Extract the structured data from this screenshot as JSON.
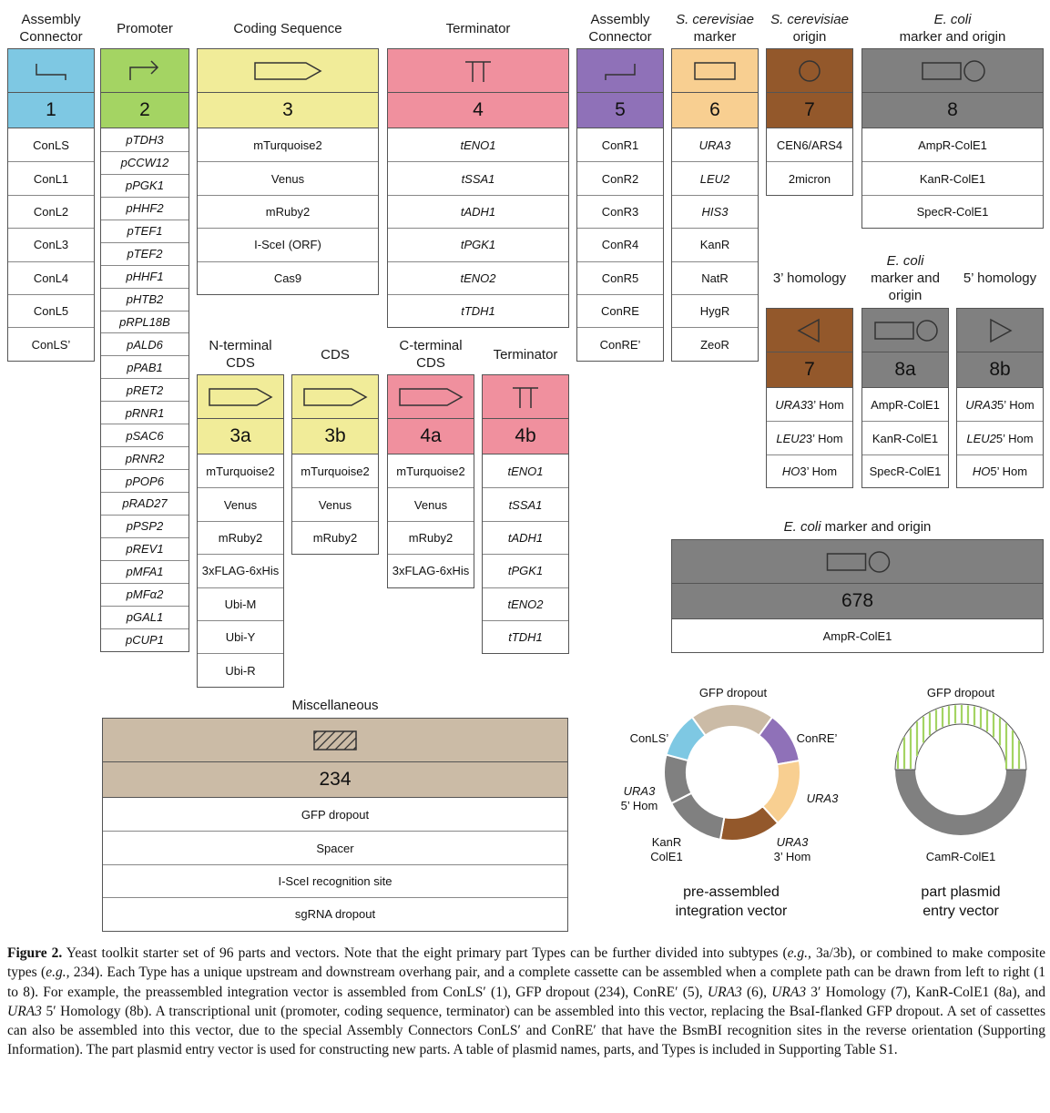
{
  "colors": {
    "connector_left": "#7ec8e3",
    "promoter": "#a4d463",
    "cds": "#f1ec99",
    "terminator": "#f0909e",
    "connector_right": "#8f71b8",
    "marker": "#f8cf91",
    "origin": "#93582b",
    "ecoli": "#808080",
    "misc": "#cbbba6"
  },
  "top": {
    "type1": {
      "header": "Assembly\nConnector",
      "num": "1",
      "items": [
        "ConLS",
        "ConL1",
        "ConL2",
        "ConL3",
        "ConL4",
        "ConL5",
        "ConLS’"
      ]
    },
    "type2": {
      "header": "Promoter",
      "num": "2",
      "items": [
        "pTDH3",
        "pCCW12",
        "pPGK1",
        "pHHF2",
        "pTEF1",
        "pTEF2",
        "pHHF1",
        "pHTB2",
        "pRPL18B",
        "pALD6",
        "pPAB1",
        "pRET2",
        "pRNR1",
        "pSAC6",
        "pRNR2",
        "pPOP6",
        "pRAD27",
        "pPSP2",
        "pREV1",
        "pMFA1",
        "pMFα2",
        "pGAL1",
        "pCUP1"
      ]
    },
    "type3": {
      "header": "Coding Sequence",
      "num": "3",
      "items": [
        "mTurquoise2",
        "Venus",
        "mRuby2",
        "I-SceI (ORF)",
        "Cas9"
      ]
    },
    "type4": {
      "header": "Terminator",
      "num": "4",
      "items": [
        "tENO1",
        "tSSA1",
        "tADH1",
        "tPGK1",
        "tENO2",
        "tTDH1"
      ]
    },
    "type5": {
      "header": "Assembly\nConnector",
      "num": "5",
      "items": [
        "ConR1",
        "ConR2",
        "ConR3",
        "ConR4",
        "ConR5",
        "ConRE",
        "ConRE’"
      ]
    },
    "type6": {
      "header_italic": "S. cerevisiae",
      "header_rest": "marker",
      "num": "6",
      "items": [
        "URA3",
        "LEU2",
        "HIS3",
        "KanR",
        "NatR",
        "HygR",
        "ZeoR"
      ]
    },
    "type7": {
      "header_italic": "S. cerevisiae",
      "header_rest": "origin",
      "num": "7",
      "items": [
        "CEN6/ARS4",
        "2micron"
      ]
    },
    "type8": {
      "header_italic": "E. coli",
      "header_rest": "marker and origin",
      "num": "8",
      "items": [
        "AmpR-ColE1",
        "KanR-ColE1",
        "SpecR-ColE1"
      ]
    }
  },
  "sub": {
    "t3a": {
      "header": "N-terminal\nCDS",
      "num": "3a",
      "items": [
        "mTurquoise2",
        "Venus",
        "mRuby2",
        "3xFLAG-6xHis",
        "Ubi-M",
        "Ubi-Y",
        "Ubi-R"
      ]
    },
    "t3b": {
      "header": "CDS",
      "num": "3b",
      "items": [
        "mTurquoise2",
        "Venus",
        "mRuby2"
      ]
    },
    "t4a": {
      "header": "C-terminal\nCDS",
      "num": "4a",
      "items": [
        "mTurquoise2",
        "Venus",
        "mRuby2",
        "3xFLAG-6xHis"
      ]
    },
    "t4b": {
      "header": "Terminator",
      "num": "4b",
      "items": [
        "tENO1",
        "tSSA1",
        "tADH1",
        "tPGK1",
        "tENO2",
        "tTDH1"
      ]
    },
    "h7": {
      "header": "3’ homology",
      "num": "7",
      "items": [
        {
          "i": "URA3",
          "r": " 3’ Hom"
        },
        {
          "i": "LEU2",
          "r": " 3’ Hom"
        },
        {
          "i": "HO",
          "r": " 3’ Hom"
        }
      ]
    },
    "h8a": {
      "header_italic": "E. coli",
      "header_rest": "marker and\norigin",
      "num": "8a",
      "items": [
        "AmpR-ColE1",
        "KanR-ColE1",
        "SpecR-ColE1"
      ]
    },
    "h8b": {
      "header": "5’ homology",
      "num": "8b",
      "items": [
        {
          "i": "URA3",
          "r": " 5’ Hom"
        },
        {
          "i": "LEU2",
          "r": " 5’ Hom"
        },
        {
          "i": "HO",
          "r": " 5’ Hom"
        }
      ]
    },
    "t678": {
      "header_italic": "E. coli",
      "header_rest": " marker and origin",
      "num": "678",
      "items": [
        "AmpR-ColE1"
      ]
    },
    "misc": {
      "header": "Miscellaneous",
      "num": "234",
      "items": [
        "GFP dropout",
        "Spacer",
        "I-SceI recognition site",
        "sgRNA dropout"
      ]
    }
  },
  "vectors": {
    "pre": {
      "labels": {
        "gfp": "GFP dropout",
        "conls": "ConLS’",
        "conre": "ConRE’",
        "ura3_5": "URA3",
        "ura3_5b": "5’ Hom",
        "ura3": "URA3",
        "kanr": "KanR",
        "kanr_b": "ColE1",
        "ura3_3": "URA3",
        "ura3_3b": "3’ Hom"
      },
      "title": "pre-assembled\nintegration vector"
    },
    "entry": {
      "labels": {
        "gfp": "GFP dropout",
        "camr": "CamR-ColE1"
      },
      "title": "part plasmid\nentry vector"
    }
  },
  "caption": {
    "label": "Figure 2.",
    "segments": [
      {
        "t": " Yeast toolkit starter set of 96 parts and vectors. Note that the eight primary part Types can be further divided into subtypes ("
      },
      {
        "t": "e.g.,",
        "i": true
      },
      {
        "t": " 3a/3b), or combined to make composite types ("
      },
      {
        "t": "e.g.,",
        "i": true
      },
      {
        "t": " 234). Each Type has a unique upstream and downstream overhang pair, and a complete cassette can be assembled when a complete path can be drawn from left to right (1 to 8). For example, the preassembled integration vector is assembled from ConLS′ (1), GFP dropout (234), ConRE′ (5), "
      },
      {
        "t": "URA3",
        "i": true
      },
      {
        "t": " (6), "
      },
      {
        "t": "URA3",
        "i": true
      },
      {
        "t": " 3′ Homology (7), KanR-ColE1 (8a), and "
      },
      {
        "t": "URA3",
        "i": true
      },
      {
        "t": " 5′ Homology (8b). A transcriptional unit (promoter, coding sequence, terminator) can be assembled into this vector, replacing the BsaI-flanked GFP dropout. A set of cassettes can also be assembled into this vector, due to the special Assembly Connectors ConLS′ and ConRE′ that have the BsmBI recognition sites in the reverse orientation (Supporting Information). The part plasmid entry vector is used for constructing new parts. A table of plasmid names, parts, and Types is included in Supporting Table S1."
      }
    ]
  }
}
